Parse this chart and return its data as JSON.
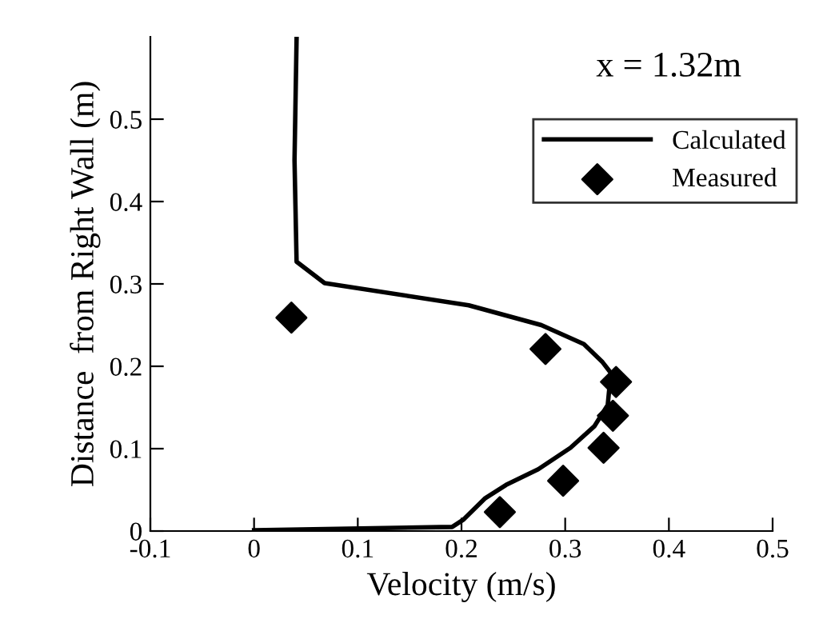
{
  "chart_data": {
    "type": "line",
    "xlabel": "Velocity (m/s)",
    "ylabel": "Distance  from Right Wall (m)",
    "annotations": [
      "x = 1.32m"
    ],
    "xlim": [
      -0.1,
      0.5
    ],
    "xticks": [
      -0.1,
      0,
      0.1,
      0.2,
      0.3,
      0.4,
      0.5
    ],
    "ylim": [
      0,
      0.6
    ],
    "yticks": [
      0,
      0.1,
      0.2,
      0.3,
      0.4,
      0.5
    ],
    "grid": false,
    "legend": "top right",
    "series": [
      {
        "name": "Calculated",
        "color": "#000000",
        "marker": "none",
        "line_style": "solid",
        "x": [
          0,
          0.191,
          0.202,
          0.223,
          0.243,
          0.274,
          0.305,
          0.328,
          0.341,
          0.344,
          0.336,
          0.318,
          0.277,
          0.207,
          0.068,
          0.041,
          0.039,
          0.041
        ],
        "values": [
          0.001,
          0.005,
          0.014,
          0.04,
          0.056,
          0.075,
          0.101,
          0.127,
          0.153,
          0.192,
          0.205,
          0.227,
          0.25,
          0.274,
          0.301,
          0.327,
          0.45,
          0.598
        ]
      },
      {
        "name": "Measured",
        "type": "scatter",
        "color": "#000000",
        "marker": "diamond",
        "x": [
          0.036,
          0.281,
          0.349,
          0.346,
          0.337,
          0.298,
          0.237
        ],
        "values": [
          0.259,
          0.221,
          0.181,
          0.14,
          0.101,
          0.061,
          0.023
        ]
      }
    ]
  }
}
